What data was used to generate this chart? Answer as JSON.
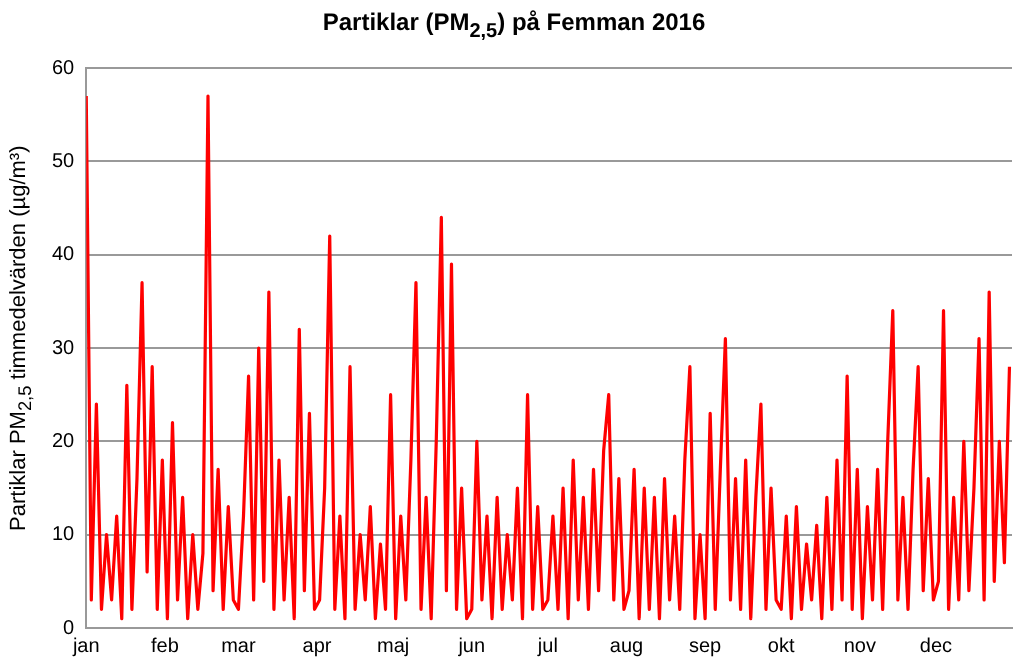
{
  "chart_data": {
    "type": "line",
    "title": "Partiklar (PM$_{2,5}$) på Femman 2016",
    "ylabel": "Partiklar PM$_{2,5}$ timmedelvärden (µg/m³)",
    "x": [
      "2016-01-01",
      "2016-01-03",
      "2016-01-05",
      "2016-01-07",
      "2016-01-09",
      "2016-01-11",
      "2016-01-13",
      "2016-01-15",
      "2016-01-17",
      "2016-01-19",
      "2016-01-21",
      "2016-01-23",
      "2016-01-25",
      "2016-01-27",
      "2016-01-29",
      "2016-01-31",
      "2016-02-02",
      "2016-02-04",
      "2016-02-06",
      "2016-02-08",
      "2016-02-10",
      "2016-02-12",
      "2016-02-14",
      "2016-02-16",
      "2016-02-18",
      "2016-02-20",
      "2016-02-22",
      "2016-02-24",
      "2016-02-26",
      "2016-02-28",
      "2016-03-01",
      "2016-03-03",
      "2016-03-05",
      "2016-03-07",
      "2016-03-09",
      "2016-03-11",
      "2016-03-13",
      "2016-03-15",
      "2016-03-17",
      "2016-03-19",
      "2016-03-21",
      "2016-03-23",
      "2016-03-25",
      "2016-03-27",
      "2016-03-29",
      "2016-03-31",
      "2016-04-02",
      "2016-04-04",
      "2016-04-06",
      "2016-04-08",
      "2016-04-10",
      "2016-04-12",
      "2016-04-14",
      "2016-04-16",
      "2016-04-18",
      "2016-04-20",
      "2016-04-22",
      "2016-04-24",
      "2016-04-26",
      "2016-04-28",
      "2016-04-30",
      "2016-05-02",
      "2016-05-04",
      "2016-05-06",
      "2016-05-08",
      "2016-05-10",
      "2016-05-12",
      "2016-05-14",
      "2016-05-16",
      "2016-05-18",
      "2016-05-20",
      "2016-05-22",
      "2016-05-24",
      "2016-05-26",
      "2016-05-28",
      "2016-05-30",
      "2016-06-01",
      "2016-06-03",
      "2016-06-05",
      "2016-06-07",
      "2016-06-09",
      "2016-06-11",
      "2016-06-13",
      "2016-06-15",
      "2016-06-17",
      "2016-06-19",
      "2016-06-21",
      "2016-06-23",
      "2016-06-25",
      "2016-06-27",
      "2016-06-29",
      "2016-07-01",
      "2016-07-03",
      "2016-07-05",
      "2016-07-07",
      "2016-07-09",
      "2016-07-11",
      "2016-07-13",
      "2016-07-15",
      "2016-07-17",
      "2016-07-19",
      "2016-07-21",
      "2016-07-23",
      "2016-07-25",
      "2016-07-27",
      "2016-07-29",
      "2016-07-31",
      "2016-08-02",
      "2016-08-04",
      "2016-08-06",
      "2016-08-08",
      "2016-08-10",
      "2016-08-12",
      "2016-08-14",
      "2016-08-16",
      "2016-08-18",
      "2016-08-20",
      "2016-08-22",
      "2016-08-24",
      "2016-08-26",
      "2016-08-28",
      "2016-08-30",
      "2016-09-01",
      "2016-09-03",
      "2016-09-05",
      "2016-09-07",
      "2016-09-09",
      "2016-09-11",
      "2016-09-13",
      "2016-09-15",
      "2016-09-17",
      "2016-09-19",
      "2016-09-21",
      "2016-09-23",
      "2016-09-25",
      "2016-09-27",
      "2016-09-29",
      "2016-10-01",
      "2016-10-03",
      "2016-10-05",
      "2016-10-07",
      "2016-10-09",
      "2016-10-11",
      "2016-10-13",
      "2016-10-15",
      "2016-10-17",
      "2016-10-19",
      "2016-10-21",
      "2016-10-23",
      "2016-10-25",
      "2016-10-27",
      "2016-10-29",
      "2016-10-31",
      "2016-11-02",
      "2016-11-04",
      "2016-11-06",
      "2016-11-08",
      "2016-11-10",
      "2016-11-12",
      "2016-11-14",
      "2016-11-16",
      "2016-11-18",
      "2016-11-20",
      "2016-11-22",
      "2016-11-24",
      "2016-11-26",
      "2016-11-28",
      "2016-11-30",
      "2016-12-02",
      "2016-12-04",
      "2016-12-06",
      "2016-12-08",
      "2016-12-10",
      "2016-12-12",
      "2016-12-14",
      "2016-12-16",
      "2016-12-18",
      "2016-12-20",
      "2016-12-22",
      "2016-12-24",
      "2016-12-26",
      "2016-12-28",
      "2016-12-30"
    ],
    "series": [
      {
        "color": "#ff0000",
        "values": [
          57,
          3,
          24,
          2,
          10,
          3,
          12,
          1,
          26,
          2,
          16,
          37,
          6,
          28,
          2,
          18,
          1,
          22,
          3,
          14,
          1,
          10,
          2,
          8,
          57,
          4,
          17,
          2,
          13,
          3,
          2,
          12,
          27,
          3,
          30,
          5,
          36,
          2,
          18,
          3,
          14,
          1,
          32,
          4,
          23,
          2,
          3,
          15,
          42,
          2,
          12,
          1,
          28,
          2,
          10,
          3,
          13,
          1,
          9,
          2,
          25,
          1,
          12,
          3,
          18,
          37,
          2,
          14,
          1,
          20,
          44,
          4,
          39,
          2,
          15,
          1,
          2,
          20,
          3,
          12,
          1,
          14,
          2,
          10,
          3,
          15,
          1,
          25,
          2,
          13,
          2,
          3,
          12,
          2,
          15,
          1,
          18,
          3,
          14,
          2,
          17,
          4,
          19,
          25,
          3,
          16,
          2,
          4,
          17,
          1,
          15,
          2,
          14,
          1,
          16,
          3,
          12,
          2,
          18,
          28,
          1,
          10,
          1,
          23,
          2,
          17,
          31,
          3,
          16,
          2,
          18,
          1,
          14,
          24,
          2,
          15,
          3,
          2,
          12,
          1,
          13,
          2,
          9,
          3,
          11,
          1,
          14,
          2,
          18,
          3,
          27,
          2,
          17,
          1,
          13,
          3,
          17,
          2,
          20,
          34,
          3,
          14,
          2,
          17,
          28,
          4,
          16,
          3,
          5,
          34,
          2,
          14,
          3,
          20,
          4,
          15,
          31,
          3,
          36,
          5,
          20,
          7,
          28
        ]
      }
    ],
    "xlim": [
      "2016-01-01",
      "2016-12-31"
    ],
    "xticks": [
      {
        "value": "2016-01-01",
        "label": "jan"
      },
      {
        "value": "2016-02-01",
        "label": "feb"
      },
      {
        "value": "2016-03-01",
        "label": "mar"
      },
      {
        "value": "2016-04-01",
        "label": "apr"
      },
      {
        "value": "2016-05-01",
        "label": "maj"
      },
      {
        "value": "2016-06-01",
        "label": "jun"
      },
      {
        "value": "2016-07-01",
        "label": "jul"
      },
      {
        "value": "2016-08-01",
        "label": "aug"
      },
      {
        "value": "2016-09-01",
        "label": "sep"
      },
      {
        "value": "2016-10-01",
        "label": "okt"
      },
      {
        "value": "2016-11-01",
        "label": "nov"
      },
      {
        "value": "2016-12-01",
        "label": "dec"
      }
    ],
    "ylim": [
      0,
      60
    ],
    "yticks": [
      0,
      10,
      20,
      30,
      40,
      50,
      60
    ],
    "grid": "y",
    "legend": false
  }
}
